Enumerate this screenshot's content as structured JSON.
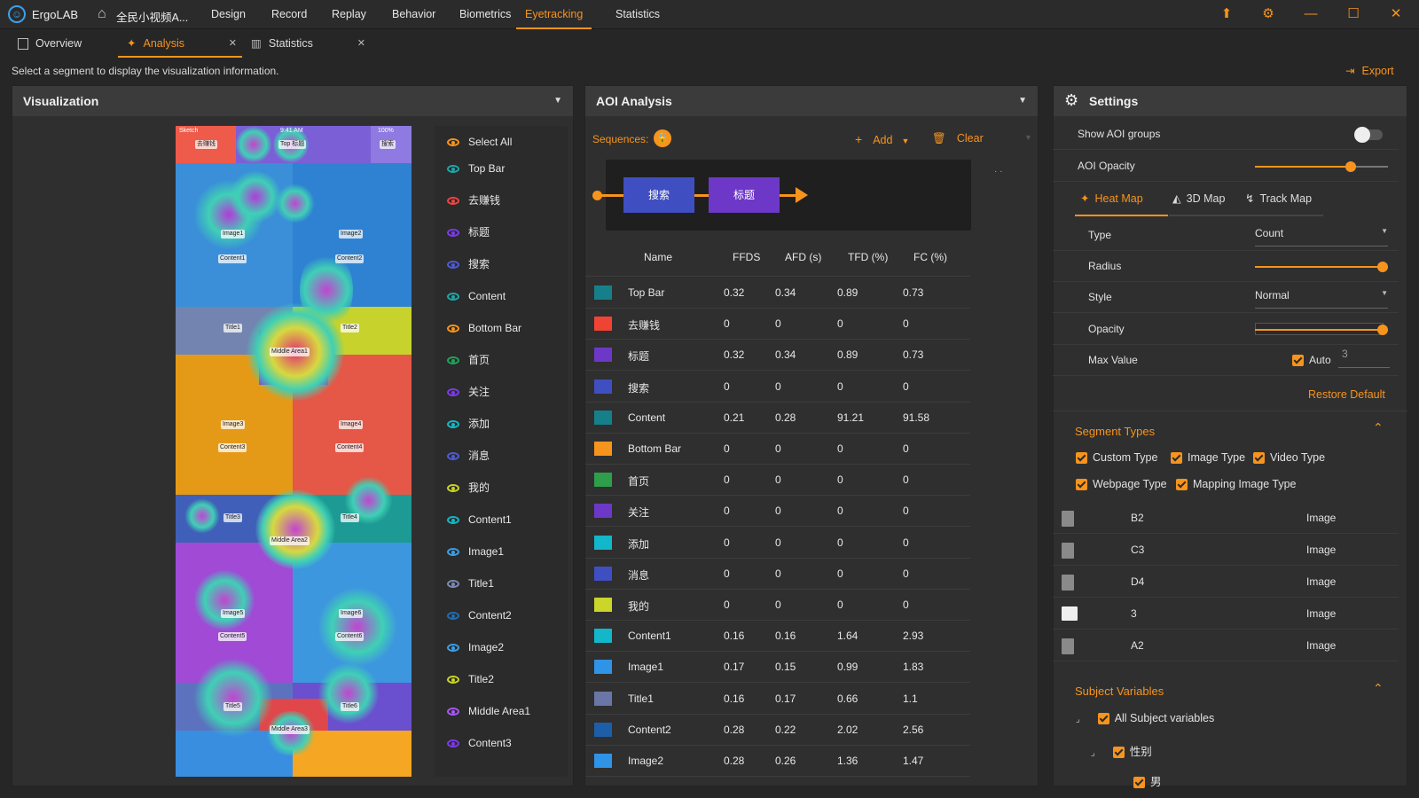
{
  "app": {
    "name": "ErgoLAB",
    "project": "全民小视频A..."
  },
  "menu": [
    "Design",
    "Record",
    "Replay",
    "Behavior",
    "Biometrics",
    "Eyetracking",
    "Statistics"
  ],
  "menu_active": "Eyetracking",
  "tabs": {
    "overview": "Overview",
    "analysis": "Analysis",
    "statistics": "Statistics"
  },
  "hint": "Select a segment to display the visualization information.",
  "export_label": "Export",
  "visualization": {
    "title": "Visualization",
    "select_all": "Select All",
    "aois": [
      {
        "label": "Top Bar",
        "color": "#1ea6a8"
      },
      {
        "label": "去赚钱",
        "color": "#ef4444"
      },
      {
        "label": "标题",
        "color": "#7c3aed"
      },
      {
        "label": "搜索",
        "color": "#4f5bd5"
      },
      {
        "label": "Content",
        "color": "#1ea6a8"
      },
      {
        "label": "Bottom Bar",
        "color": "#f7941d"
      },
      {
        "label": "首页",
        "color": "#22a35a"
      },
      {
        "label": "关注",
        "color": "#7c3aed"
      },
      {
        "label": "添加",
        "color": "#14b8c4"
      },
      {
        "label": "消息",
        "color": "#4f5bd5"
      },
      {
        "label": "我的",
        "color": "#c9d424"
      },
      {
        "label": "Content1",
        "color": "#14b8c4"
      },
      {
        "label": "Image1",
        "color": "#3aa0e8"
      },
      {
        "label": "Title1",
        "color": "#7a8bb5"
      },
      {
        "label": "Content2",
        "color": "#1f6fb5"
      },
      {
        "label": "Image2",
        "color": "#3aa0e8"
      },
      {
        "label": "Title2",
        "color": "#c9d424"
      },
      {
        "label": "Middle Area1",
        "color": "#a855f7"
      },
      {
        "label": "Content3",
        "color": "#7c3aed"
      }
    ],
    "phone_labels": {
      "top_time": "9:41 AM",
      "top_signal": "Sketch",
      "top_battery": "100%",
      "btn_earn": "去赚钱",
      "btn_title": "Top 标题",
      "btn_search": "搜索",
      "image1": "Image1",
      "content1": "Content1",
      "image2": "Image2",
      "content2": "Content2",
      "title1": "Title1",
      "title2": "Title2",
      "middle1": "Middle Area1",
      "image3": "Image3",
      "content3": "Content3",
      "image4": "Image4",
      "content4": "Content4",
      "title3": "Title3",
      "title4": "Title4",
      "middle2": "Middle Area2",
      "image5": "Image5",
      "content5": "Content5",
      "image6": "Image6",
      "content6": "Content6",
      "title5": "Title5",
      "title6": "Title6",
      "middle3": "Middle Area3"
    }
  },
  "aoi_analysis": {
    "title": "AOI Analysis",
    "sequences_label": "Sequences:",
    "add_label": "Add",
    "clear_label": "Clear",
    "sequence_nodes": [
      "搜索",
      "标题"
    ],
    "columns": [
      "Name",
      "FFDS",
      "AFD (s)",
      "TFD (%)",
      "FC (%)"
    ],
    "rows": [
      {
        "name": "Top Bar",
        "color": "#15808a",
        "ffds": "0.32",
        "afd": "0.34",
        "tfd": "0.89",
        "fc": "0.73"
      },
      {
        "name": "去赚钱",
        "color": "#ef4433",
        "ffds": "0",
        "afd": "0",
        "tfd": "0",
        "fc": "0"
      },
      {
        "name": "标题",
        "color": "#6d38c7",
        "ffds": "0.32",
        "afd": "0.34",
        "tfd": "0.89",
        "fc": "0.73"
      },
      {
        "name": "搜索",
        "color": "#3f4fc2",
        "ffds": "0",
        "afd": "0",
        "tfd": "0",
        "fc": "0"
      },
      {
        "name": "Content",
        "color": "#15808a",
        "ffds": "0.21",
        "afd": "0.28",
        "tfd": "91.21",
        "fc": "91.58"
      },
      {
        "name": "Bottom Bar",
        "color": "#f7941d",
        "ffds": "0",
        "afd": "0",
        "tfd": "0",
        "fc": "0"
      },
      {
        "name": "首页",
        "color": "#2e9e4b",
        "ffds": "0",
        "afd": "0",
        "tfd": "0",
        "fc": "0"
      },
      {
        "name": "关注",
        "color": "#6d38c7",
        "ffds": "0",
        "afd": "0",
        "tfd": "0",
        "fc": "0"
      },
      {
        "name": "添加",
        "color": "#12b7c9",
        "ffds": "0",
        "afd": "0",
        "tfd": "0",
        "fc": "0"
      },
      {
        "name": "消息",
        "color": "#3f4fc2",
        "ffds": "0",
        "afd": "0",
        "tfd": "0",
        "fc": "0"
      },
      {
        "name": "我的",
        "color": "#cbd52a",
        "ffds": "0",
        "afd": "0",
        "tfd": "0",
        "fc": "0"
      },
      {
        "name": "Content1",
        "color": "#12b7c9",
        "ffds": "0.16",
        "afd": "0.16",
        "tfd": "1.64",
        "fc": "2.93"
      },
      {
        "name": "Image1",
        "color": "#2f93e6",
        "ffds": "0.17",
        "afd": "0.15",
        "tfd": "0.99",
        "fc": "1.83"
      },
      {
        "name": "Title1",
        "color": "#6a76a6",
        "ffds": "0.16",
        "afd": "0.17",
        "tfd": "0.66",
        "fc": "1.1"
      },
      {
        "name": "Content2",
        "color": "#1c5fa8",
        "ffds": "0.28",
        "afd": "0.22",
        "tfd": "2.02",
        "fc": "2.56"
      },
      {
        "name": "Image2",
        "color": "#2f93e6",
        "ffds": "0.28",
        "afd": "0.26",
        "tfd": "1.36",
        "fc": "1.47"
      }
    ]
  },
  "settings": {
    "title": "Settings",
    "show_aoi_groups": "Show AOI groups",
    "aoi_opacity": "AOI Opacity",
    "aoi_opacity_value": 0.72,
    "map_tabs": [
      "Heat Map",
      "3D Map",
      "Track Map"
    ],
    "map_tab_active": "Heat Map",
    "type_label": "Type",
    "type_value": "Count",
    "radius_label": "Radius",
    "radius_value": 1.0,
    "style_label": "Style",
    "style_value": "Normal",
    "opacity_label": "Opacity",
    "opacity_value": 1.0,
    "max_value_label": "Max Value",
    "auto_label": "Auto",
    "max_value": "3",
    "restore_default": "Restore Default",
    "segment_types_title": "Segment Types",
    "segment_types": [
      "Custom Type",
      "Image Type",
      "Video Type",
      "Webpage Type",
      "Mapping Image Type"
    ],
    "segments": [
      {
        "name": "B2",
        "type": "Image"
      },
      {
        "name": "C3",
        "type": "Image"
      },
      {
        "name": "D4",
        "type": "Image"
      },
      {
        "name": "3",
        "type": "Image"
      },
      {
        "name": "A2",
        "type": "Image"
      }
    ],
    "subject_variables_title": "Subject Variables",
    "subject_all": "All Subject variables",
    "subject_gender": "性别",
    "subject_male": "男"
  }
}
